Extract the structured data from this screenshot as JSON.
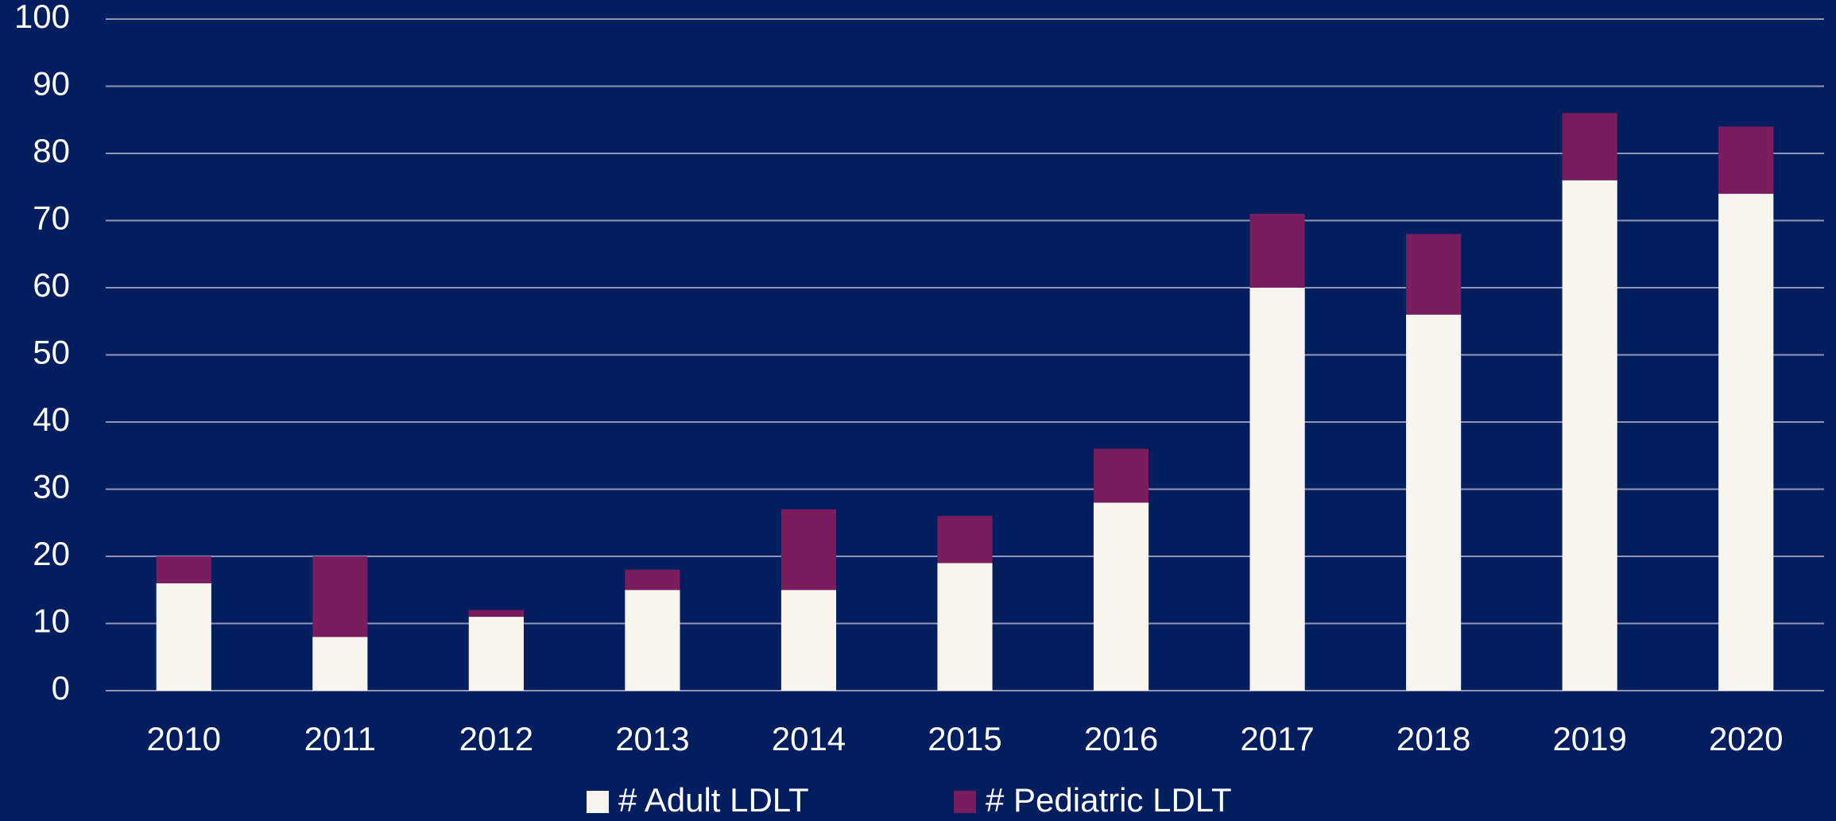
{
  "chart_data": {
    "type": "stacked_bar",
    "categories": [
      "2010",
      "2011",
      "2012",
      "2013",
      "2014",
      "2015",
      "2016",
      "2017",
      "2018",
      "2019",
      "2020"
    ],
    "series": [
      {
        "name": "# Adult LDLT",
        "color": "#f8f5ef",
        "values": [
          16,
          8,
          11,
          15,
          15,
          19,
          28,
          60,
          56,
          76,
          74
        ]
      },
      {
        "name": "# Pediatric LDLT",
        "color": "#7a1c5e",
        "values": [
          4,
          12,
          1,
          3,
          12,
          7,
          8,
          11,
          12,
          10,
          10
        ]
      }
    ],
    "ylim": [
      0,
      100
    ],
    "yticks": [
      0,
      10,
      20,
      30,
      40,
      50,
      60,
      70,
      80,
      90,
      100
    ],
    "grid": true,
    "legend": "bottom"
  }
}
